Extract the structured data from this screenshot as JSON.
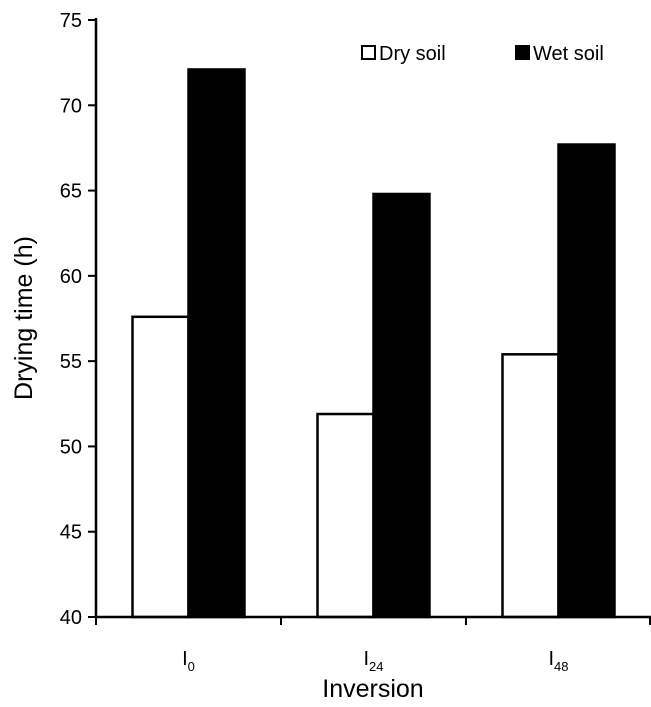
{
  "chart_data": {
    "type": "bar",
    "categories": [
      {
        "base": "I",
        "sub": "0"
      },
      {
        "base": "I",
        "sub": "24"
      },
      {
        "base": "I",
        "sub": "48"
      }
    ],
    "series": [
      {
        "name": "Dry soil",
        "values": [
          57.6,
          51.9,
          55.4
        ],
        "color": "#ffffff"
      },
      {
        "name": "Wet soil",
        "values": [
          72.1,
          64.8,
          67.7
        ],
        "color": "#000000"
      }
    ],
    "xlabel": "Inversion",
    "ylabel": "Drying time (h)",
    "ylim": [
      40,
      75
    ],
    "yticks": [
      40,
      45,
      50,
      55,
      60,
      65,
      70,
      75
    ],
    "grid": false,
    "legend_position": "top-right"
  }
}
